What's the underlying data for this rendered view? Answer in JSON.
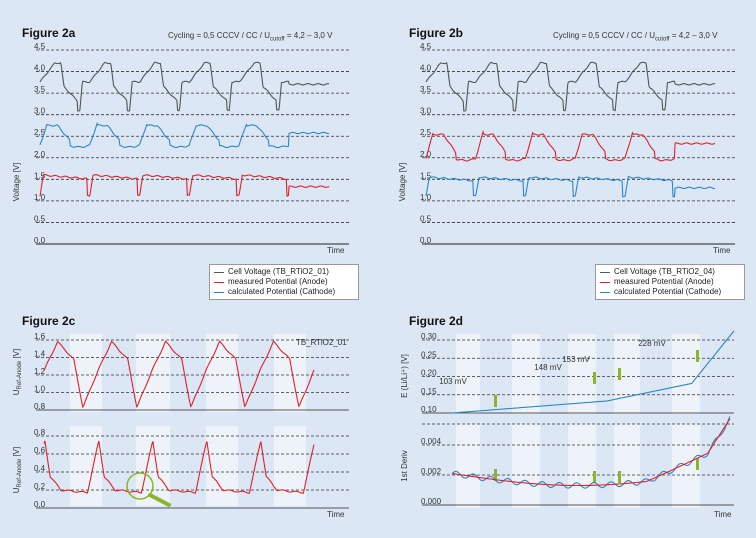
{
  "panels": {
    "a": {
      "title": "Figure 2a",
      "cycling": "Cycling = 0,5 CCCV / CC / U",
      "cycling_sub": "cutoff",
      "cycling_tail": " = 4,2 – 3,0 V"
    },
    "b": {
      "title": "Figure 2b",
      "cycling": "Cycling = 0,5 CCCV / CC / U",
      "cycling_sub": "cutoff",
      "cycling_tail": " = 4,2 – 3,0 V"
    },
    "c": {
      "title": "Figure 2c"
    },
    "d": {
      "title": "Figure 2d"
    }
  },
  "legend_a": [
    "Cell Voltage (TB_RTiO2_01)",
    "measured Potential (Anode)",
    "calculated Potential (Cathode)"
  ],
  "legend_b": [
    "Cell Voltage (TB_RTiO2_04)",
    "measured Potential (Anode)",
    "calculated Potential (Cathode)"
  ],
  "colors": {
    "cell": "#555555",
    "anode": "#e0202a",
    "cathode": "#2d86c8",
    "marker": "#8db52a",
    "lens": "#8db52a"
  },
  "chart_data": [
    {
      "type": "line",
      "title": "Figure 2a",
      "ylabel": "Voltage [V]",
      "xlabel": "Time",
      "ylim": [
        0,
        4.5
      ],
      "yticks": [
        "0,0",
        "0,5",
        "1,0",
        "1,5",
        "2,0",
        "2,5",
        "3,0",
        "3,5",
        "4,0",
        "4,5"
      ],
      "grid": true,
      "series": [
        {
          "name": "Cell Voltage (TB_RTiO2_01)",
          "cycles": 5,
          "range": [
            3.1,
            4.2
          ]
        },
        {
          "name": "measured Potential (Anode)",
          "cycles": 5,
          "range": [
            1.0,
            1.6
          ]
        },
        {
          "name": "calculated Potential (Cathode)",
          "cycles": 5,
          "range": [
            2.3,
            2.8
          ]
        }
      ],
      "legend_position": "bottom-right"
    },
    {
      "type": "line",
      "title": "Figure 2b",
      "ylabel": "Voltage [V]",
      "xlabel": "Time",
      "ylim": [
        0,
        4.5
      ],
      "yticks": [
        "0,0",
        "0,5",
        "1,0",
        "1,5",
        "2,0",
        "2,5",
        "3,0",
        "3,5",
        "4,0",
        "4,5"
      ],
      "grid": true,
      "series": [
        {
          "name": "Cell Voltage (TB_RTiO2_04)",
          "cycles": 5,
          "range": [
            3.1,
            4.2
          ]
        },
        {
          "name": "measured Potential (Anode)",
          "cycles": 5,
          "range": [
            2.0,
            2.6
          ]
        },
        {
          "name": "calculated Potential (Cathode)",
          "cycles": 5,
          "range": [
            1.0,
            1.55
          ]
        }
      ],
      "legend_position": "bottom-right"
    },
    {
      "type": "line",
      "title": "Figure 2c",
      "annotation": "TB_RTiO2_01",
      "xlabel": "Time",
      "top": {
        "ylabel": "U_Ref-Anode [V]",
        "ylabel_main": "U",
        "ylabel_sub": "Ref-Anode",
        "ylabel_tail": " [V]",
        "yticks": [
          "1,6",
          "1,4",
          "1,2",
          "1,0",
          "0,8"
        ],
        "ylim": [
          0.8,
          1.6
        ]
      },
      "bottom": {
        "ylabel": "U_Ref-Anode [V]",
        "ylabel_main": "U",
        "ylabel_sub": "Ref-Anode",
        "ylabel_tail": " [V]",
        "yticks": [
          "0,8",
          "0,6",
          "0,4",
          "0,2",
          "0,0"
        ],
        "ylim": [
          0.0,
          0.8
        ]
      },
      "cycles": 5
    },
    {
      "type": "line",
      "title": "Figure 2d",
      "xlabel": "Time",
      "top": {
        "ylabel": "E (Li/Li⁺) [V]",
        "yticks": [
          "0,30",
          "0,25",
          "0,20",
          "0,15",
          "0,10"
        ],
        "ylim": [
          0.1,
          0.3
        ]
      },
      "bottom": {
        "ylabel": "1st Deriv",
        "yticks": [
          "0,004",
          "0,002",
          "0,000"
        ],
        "ylim": [
          0.0,
          0.004
        ]
      },
      "annotations": [
        "103 mV",
        "148 mV",
        "153 mV",
        "228 mV"
      ]
    }
  ]
}
